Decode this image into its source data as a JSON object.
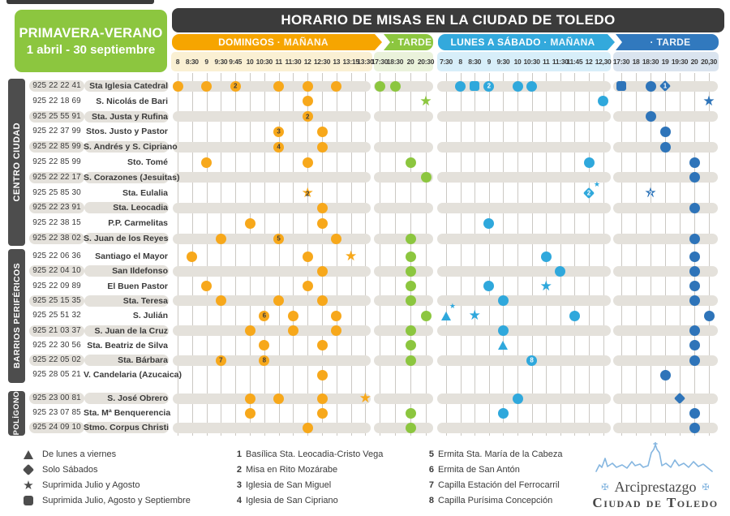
{
  "season_box": {
    "line1": "PRIMAVERA-VERANO",
    "line2": "1 abril - 30 septiembre"
  },
  "title": "HORARIO DE MISAS EN LA CIUDAD DE TOLEDO",
  "bands": {
    "dm": {
      "bold": "DOMINGOS",
      "rest": "MAÑANA"
    },
    "dt": {
      "bold": "",
      "rest": "TARDE"
    },
    "lm": {
      "bold": "LUNES A SÁBADO",
      "rest": "MAÑANA"
    },
    "lt": {
      "bold": "",
      "rest": "TARDE"
    }
  },
  "columns": {
    "dm": [
      "8",
      "8:30",
      "9",
      "9:30",
      "9:45",
      "10",
      "10:30",
      "11",
      "11:30",
      "12",
      "12:30",
      "13",
      "13:15",
      "13:30"
    ],
    "dt": [
      "17:30",
      "18:30",
      "20",
      "20:30"
    ],
    "lm": [
      "7:30",
      "8",
      "8:30",
      "9",
      "9:30",
      "10",
      "10:30",
      "11",
      "11:30",
      "11:45",
      "12",
      "12,30"
    ],
    "lt": [
      "17:30",
      "18",
      "18:30",
      "19",
      "19:30",
      "20",
      "20,30"
    ]
  },
  "groups": [
    {
      "label": "CENTRO CIUDAD",
      "rows": [
        {
          "phone": "925 22 22 41",
          "name": "Sta Iglesia Catedral",
          "marks": [
            {
              "s": "dm",
              "c": 0,
              "t": "circle"
            },
            {
              "s": "dm",
              "c": 2,
              "t": "circle"
            },
            {
              "s": "dm",
              "c": 4,
              "t": "circle",
              "n": "2"
            },
            {
              "s": "dm",
              "c": 7,
              "t": "circle"
            },
            {
              "s": "dm",
              "c": 9,
              "t": "circle"
            },
            {
              "s": "dm",
              "c": 11,
              "t": "circle"
            },
            {
              "s": "dt",
              "c": 0,
              "t": "circle"
            },
            {
              "s": "dt",
              "c": 1,
              "t": "circle"
            },
            {
              "s": "lm",
              "c": 1,
              "t": "circle"
            },
            {
              "s": "lm",
              "c": 2,
              "t": "square"
            },
            {
              "s": "lm",
              "c": 3,
              "t": "circle",
              "n": "2"
            },
            {
              "s": "lm",
              "c": 5,
              "t": "circle"
            },
            {
              "s": "lm",
              "c": 6,
              "t": "circle"
            },
            {
              "s": "lt",
              "c": 0,
              "t": "square"
            },
            {
              "s": "lt",
              "c": 2,
              "t": "circle"
            },
            {
              "s": "lt",
              "c": 3,
              "t": "diamond",
              "n": "1"
            }
          ]
        },
        {
          "phone": "925 22 18 69",
          "name": "S. Nicolás de Bari",
          "marks": [
            {
              "s": "dm",
              "c": 9,
              "t": "circle"
            },
            {
              "s": "dt",
              "c": 3,
              "t": "star"
            },
            {
              "s": "lm",
              "c": 11,
              "t": "circle"
            },
            {
              "s": "lt",
              "c": 6,
              "t": "star"
            }
          ]
        },
        {
          "phone": "925 25 55 91",
          "name": "Sta. Justa y Rufina",
          "marks": [
            {
              "s": "dm",
              "c": 9,
              "t": "circle",
              "n": "2"
            },
            {
              "s": "lt",
              "c": 2,
              "t": "circle"
            }
          ]
        },
        {
          "phone": "925 22 37 99",
          "name": "Stos. Justo y Pastor",
          "marks": [
            {
              "s": "dm",
              "c": 7,
              "t": "circle",
              "n": "3"
            },
            {
              "s": "dm",
              "c": 10,
              "t": "circle"
            },
            {
              "s": "lt",
              "c": 3,
              "t": "circle"
            }
          ]
        },
        {
          "phone": "925 22 85 99",
          "name": "S. Andrés y S. Cipriano",
          "marks": [
            {
              "s": "dm",
              "c": 7,
              "t": "circle",
              "n": "4"
            },
            {
              "s": "dm",
              "c": 10,
              "t": "circle"
            },
            {
              "s": "lt",
              "c": 3,
              "t": "circle"
            }
          ]
        },
        {
          "phone": "925 22 85 99",
          "name": "Sto. Tomé",
          "marks": [
            {
              "s": "dm",
              "c": 2,
              "t": "circle"
            },
            {
              "s": "dm",
              "c": 9,
              "t": "circle"
            },
            {
              "s": "dt",
              "c": 2,
              "t": "circle"
            },
            {
              "s": "lm",
              "c": 10,
              "t": "circle"
            },
            {
              "s": "lt",
              "c": 5,
              "t": "circle"
            }
          ]
        },
        {
          "phone": "925 22 22 17",
          "name": "S. Corazones (Jesuitas)",
          "marks": [
            {
              "s": "dt",
              "c": 3,
              "t": "circle"
            },
            {
              "s": "lt",
              "c": 5,
              "t": "circle"
            }
          ]
        },
        {
          "phone": "925 25 85 30",
          "name": "Sta. Eulalia",
          "marks": [
            {
              "s": "dm",
              "c": 9,
              "t": "star",
              "n": "2"
            },
            {
              "s": "lm",
              "c": 10,
              "t": "diamond",
              "n": "2",
              "ov": true
            },
            {
              "s": "lt",
              "c": 2,
              "t": "star",
              "n": "2"
            }
          ]
        },
        {
          "phone": "925 22 23 91",
          "name": "Sta. Leocadia",
          "marks": [
            {
              "s": "dm",
              "c": 10,
              "t": "circle"
            },
            {
              "s": "lt",
              "c": 5,
              "t": "circle"
            }
          ]
        },
        {
          "phone": "925 22 38 15",
          "name": "P.P. Carmelitas",
          "marks": [
            {
              "s": "dm",
              "c": 5,
              "t": "circle"
            },
            {
              "s": "dm",
              "c": 10,
              "t": "circle"
            },
            {
              "s": "lm",
              "c": 3,
              "t": "circle"
            }
          ]
        },
        {
          "phone": "925 22 38 02",
          "name": "S. Juan de los Reyes",
          "marks": [
            {
              "s": "dm",
              "c": 3,
              "t": "circle"
            },
            {
              "s": "dm",
              "c": 7,
              "t": "circle",
              "n": "5"
            },
            {
              "s": "dm",
              "c": 11,
              "t": "circle"
            },
            {
              "s": "dt",
              "c": 2,
              "t": "circle"
            },
            {
              "s": "lt",
              "c": 5,
              "t": "circle"
            }
          ]
        }
      ]
    },
    {
      "label": "BARRIOS PERIFÉRICOS",
      "rows": [
        {
          "phone": "925 22 06 36",
          "name": "Santiago el Mayor",
          "marks": [
            {
              "s": "dm",
              "c": 1,
              "t": "circle"
            },
            {
              "s": "dm",
              "c": 9,
              "t": "circle"
            },
            {
              "s": "dm",
              "c": 12,
              "t": "star"
            },
            {
              "s": "dt",
              "c": 2,
              "t": "circle"
            },
            {
              "s": "lm",
              "c": 7,
              "t": "circle"
            },
            {
              "s": "lt",
              "c": 5,
              "t": "circle"
            }
          ]
        },
        {
          "phone": "925 22 04 10",
          "name": "San Ildefonso",
          "marks": [
            {
              "s": "dm",
              "c": 10,
              "t": "circle"
            },
            {
              "s": "dt",
              "c": 2,
              "t": "circle"
            },
            {
              "s": "lm",
              "c": 8,
              "t": "circle"
            },
            {
              "s": "lt",
              "c": 5,
              "t": "circle"
            }
          ]
        },
        {
          "phone": "925 22 09 89",
          "name": "El Buen Pastor",
          "marks": [
            {
              "s": "dm",
              "c": 2,
              "t": "circle"
            },
            {
              "s": "dm",
              "c": 9,
              "t": "circle"
            },
            {
              "s": "dt",
              "c": 2,
              "t": "circle"
            },
            {
              "s": "lm",
              "c": 3,
              "t": "circle"
            },
            {
              "s": "lm",
              "c": 7,
              "t": "star"
            },
            {
              "s": "lt",
              "c": 5,
              "t": "circle"
            }
          ]
        },
        {
          "phone": "925 25 15 35",
          "name": "Sta. Teresa",
          "marks": [
            {
              "s": "dm",
              "c": 3,
              "t": "circle"
            },
            {
              "s": "dm",
              "c": 7,
              "t": "circle"
            },
            {
              "s": "dm",
              "c": 10,
              "t": "circle"
            },
            {
              "s": "dt",
              "c": 2,
              "t": "circle"
            },
            {
              "s": "lm",
              "c": 4,
              "t": "circle"
            },
            {
              "s": "lt",
              "c": 5,
              "t": "circle"
            }
          ]
        },
        {
          "phone": "925 25 51 32",
          "name": "S. Julián",
          "marks": [
            {
              "s": "dm",
              "c": 6,
              "t": "circle",
              "n": "6"
            },
            {
              "s": "dm",
              "c": 8,
              "t": "circle"
            },
            {
              "s": "dm",
              "c": 11,
              "t": "circle"
            },
            {
              "s": "dt",
              "c": 3,
              "t": "circle"
            },
            {
              "s": "lm",
              "c": 0,
              "t": "triangle",
              "ov": true
            },
            {
              "s": "lm",
              "c": 2,
              "t": "star"
            },
            {
              "s": "lm",
              "c": 9,
              "t": "circle"
            },
            {
              "s": "lt",
              "c": 6,
              "t": "circle"
            }
          ]
        },
        {
          "phone": "925 21 03 37",
          "name": "S. Juan de la Cruz",
          "marks": [
            {
              "s": "dm",
              "c": 5,
              "t": "circle"
            },
            {
              "s": "dm",
              "c": 8,
              "t": "circle"
            },
            {
              "s": "dm",
              "c": 11,
              "t": "circle"
            },
            {
              "s": "dt",
              "c": 2,
              "t": "circle"
            },
            {
              "s": "lm",
              "c": 4,
              "t": "circle"
            },
            {
              "s": "lt",
              "c": 5,
              "t": "circle"
            }
          ]
        },
        {
          "phone": "925 22 30 56",
          "name": "Sta. Beatriz de Silva",
          "marks": [
            {
              "s": "dm",
              "c": 6,
              "t": "circle"
            },
            {
              "s": "dm",
              "c": 10,
              "t": "circle"
            },
            {
              "s": "dt",
              "c": 2,
              "t": "circle"
            },
            {
              "s": "lm",
              "c": 4,
              "t": "triangle"
            },
            {
              "s": "lt",
              "c": 5,
              "t": "circle"
            }
          ]
        },
        {
          "phone": "925 22 05 02",
          "name": "Sta. Bárbara",
          "marks": [
            {
              "s": "dm",
              "c": 3,
              "t": "circle",
              "n": "7"
            },
            {
              "s": "dm",
              "c": 6,
              "t": "circle",
              "n": "8"
            },
            {
              "s": "dt",
              "c": 2,
              "t": "circle"
            },
            {
              "s": "lm",
              "c": 6,
              "t": "circle",
              "n": "8"
            },
            {
              "s": "lt",
              "c": 5,
              "t": "circle"
            }
          ]
        },
        {
          "phone": "925 28 05 21",
          "name": "V. Candelaria (Azucaica)",
          "marks": [
            {
              "s": "dm",
              "c": 10,
              "t": "circle"
            },
            {
              "s": "lt",
              "c": 3,
              "t": "circle"
            }
          ]
        }
      ]
    },
    {
      "label": "POLÍGONO",
      "rows": [
        {
          "phone": "925 23 00 81",
          "name": "S. José Obrero",
          "marks": [
            {
              "s": "dm",
              "c": 5,
              "t": "circle"
            },
            {
              "s": "dm",
              "c": 7,
              "t": "circle"
            },
            {
              "s": "dm",
              "c": 10,
              "t": "circle"
            },
            {
              "s": "dm",
              "c": 13,
              "t": "star"
            },
            {
              "s": "lm",
              "c": 5,
              "t": "circle"
            },
            {
              "s": "lt",
              "c": 4,
              "t": "diamond"
            }
          ]
        },
        {
          "phone": "925 23 07 85",
          "name": "Sta. Mª Benquerencia",
          "marks": [
            {
              "s": "dm",
              "c": 5,
              "t": "circle"
            },
            {
              "s": "dm",
              "c": 10,
              "t": "circle"
            },
            {
              "s": "dt",
              "c": 2,
              "t": "circle"
            },
            {
              "s": "lm",
              "c": 4,
              "t": "circle"
            },
            {
              "s": "lt",
              "c": 5,
              "t": "circle"
            }
          ]
        },
        {
          "phone": "925 24 09 10",
          "name": "Stmo. Corpus Christi",
          "marks": [
            {
              "s": "dm",
              "c": 9,
              "t": "circle"
            },
            {
              "s": "dt",
              "c": 2,
              "t": "circle"
            },
            {
              "s": "lt",
              "c": 5,
              "t": "circle"
            }
          ]
        }
      ]
    }
  ],
  "legend": {
    "symbols": [
      {
        "shape": "triangle",
        "label": "De lunes a viernes"
      },
      {
        "shape": "diamond",
        "label": "Solo Sábados"
      },
      {
        "shape": "star",
        "label": "Suprimida Julio y Agosto"
      },
      {
        "shape": "square",
        "label": "Suprimida Julio, Agosto y Septiembre"
      }
    ],
    "notes": [
      {
        "n": "1",
        "label": "Basílica Sta. Leocadia-Cristo Vega"
      },
      {
        "n": "2",
        "label": "Misa en Rito Mozárabe"
      },
      {
        "n": "3",
        "label": "Iglesia de San Miguel"
      },
      {
        "n": "4",
        "label": "Iglesia de San Cipriano"
      },
      {
        "n": "5",
        "label": "Ermita Sta. María de la Cabeza"
      },
      {
        "n": "6",
        "label": "Ermita de San Antón"
      },
      {
        "n": "7",
        "label": "Capilla Estación del Ferrocarril"
      },
      {
        "n": "8",
        "label": "Capilla Purísima Concepción"
      }
    ]
  },
  "logo": {
    "line1": "Arciprestazgo",
    "line2": "Ciudad de Toledo"
  },
  "colors": {
    "orange": "#f7a81b",
    "green": "#8cc63f",
    "cyan": "#2fa8dc",
    "blue": "#2e74b9",
    "band_dm": "#f6a500",
    "band_dt": "#8cc63f",
    "band_lm": "#33a9dc",
    "band_lt": "#3179be",
    "tint_dm": "#faf0d3",
    "tint_dt": "#eaf2db",
    "tint_lm": "#d7eef9",
    "tint_lt": "#dae4ef",
    "dark": "#3b3b3b",
    "legend_symbol": "#4d4d4d",
    "num_on_orange": "#3a3a3a",
    "num_on_blue": "#ffffff"
  }
}
